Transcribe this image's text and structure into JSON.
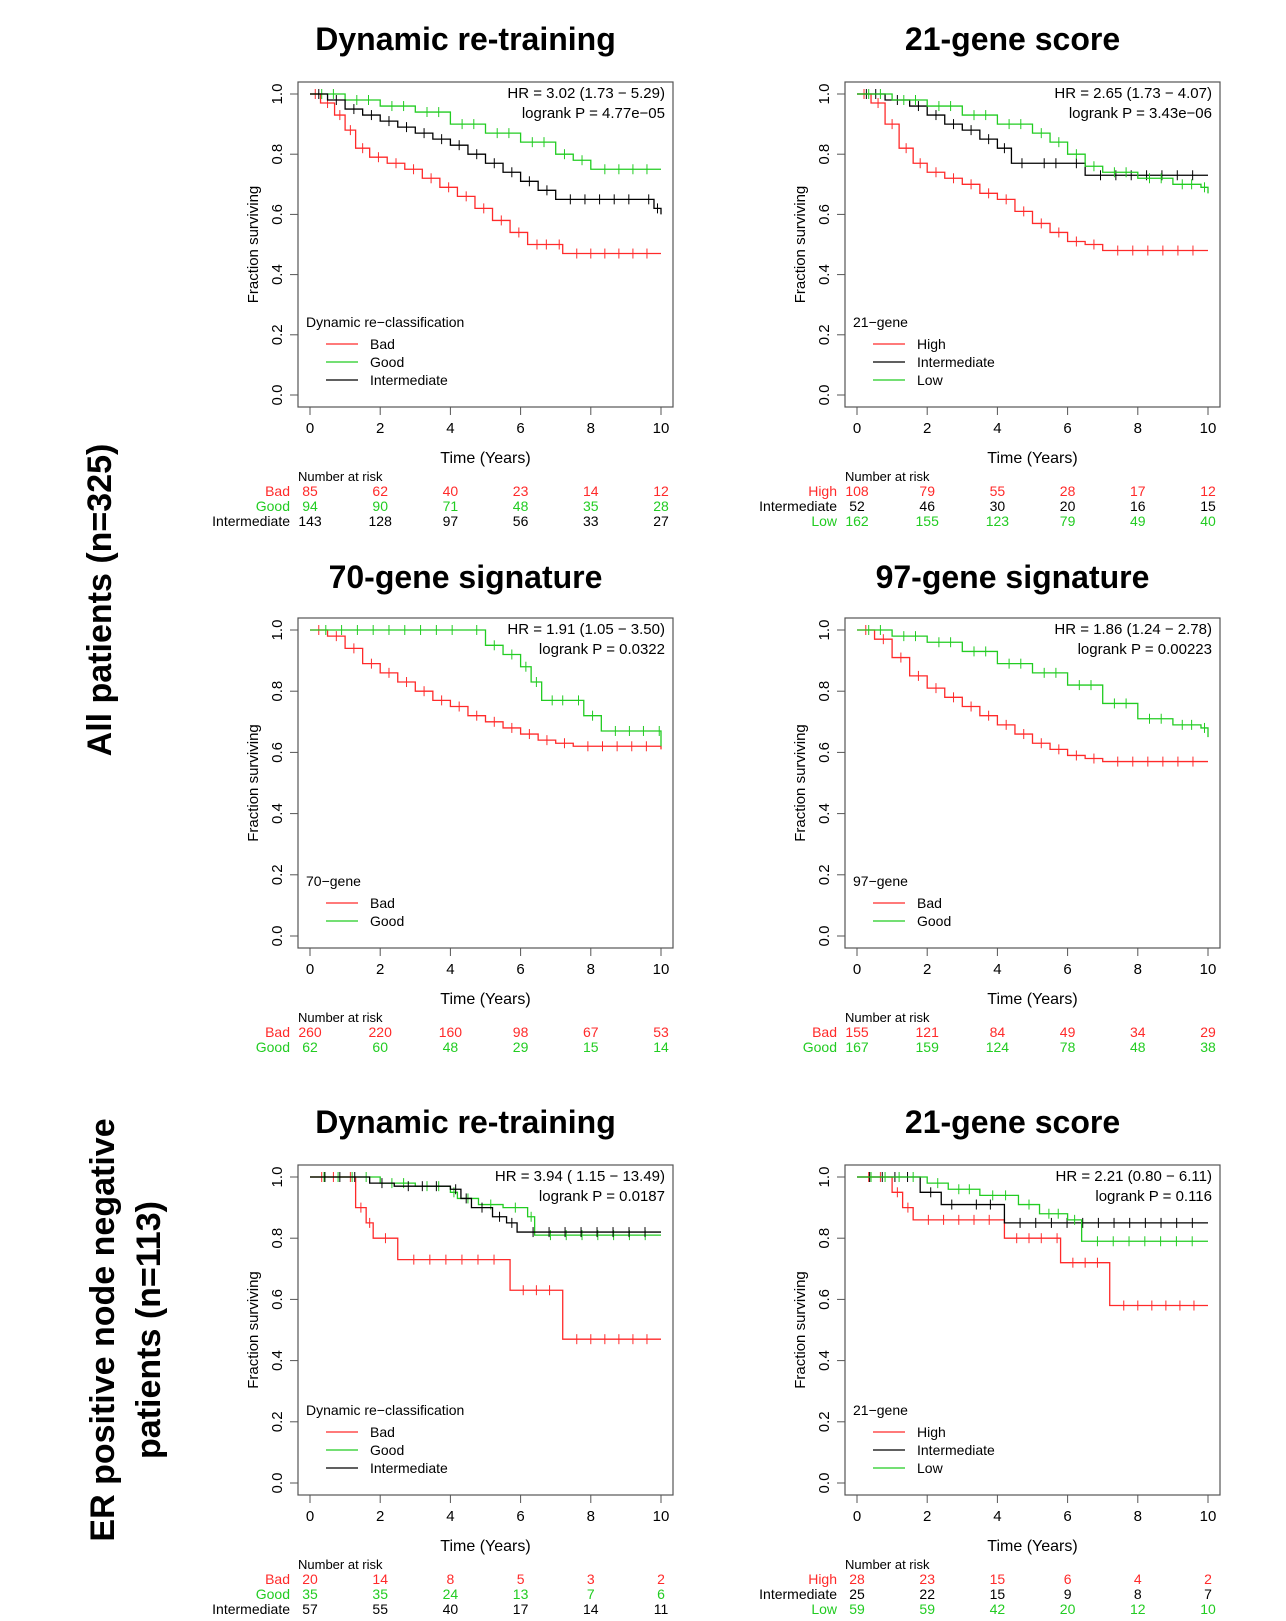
{
  "row_groups": [
    {
      "line1": "All patients (n=325)",
      "line2": ""
    },
    {
      "line1": "ER positive node negative",
      "line2": "patients (n=113)"
    }
  ],
  "chart_data": [
    {
      "type": "line",
      "title": "Dynamic re-training",
      "xlabel": "Time (Years)",
      "ylabel": "Fraction surviving",
      "xlim": [
        0,
        10
      ],
      "ylim": [
        0,
        1
      ],
      "xticks": [
        0,
        2,
        4,
        6,
        8,
        10
      ],
      "yticks": [
        "0.0",
        "0.2",
        "0.4",
        "0.6",
        "0.8",
        "1.0"
      ],
      "annotation": [
        "HR = 3.02 (1.73 − 5.29)",
        "logrank P = 4.77e−05"
      ],
      "legend": {
        "title": "Dynamic re−classification",
        "position": "bottom-left"
      },
      "risk_title": "Number at risk",
      "series": [
        {
          "name": "Bad",
          "color": "#ff2a2a",
          "x": [
            0,
            0.3,
            0.7,
            1.0,
            1.3,
            1.7,
            2.2,
            2.7,
            3.2,
            3.7,
            4.2,
            4.7,
            5.2,
            5.7,
            6.2,
            7.0,
            7.2,
            10
          ],
          "y": [
            1,
            0.97,
            0.93,
            0.88,
            0.82,
            0.79,
            0.77,
            0.75,
            0.72,
            0.69,
            0.66,
            0.62,
            0.58,
            0.54,
            0.5,
            0.5,
            0.47,
            0.47
          ],
          "risk": [
            85,
            62,
            40,
            23,
            14,
            12
          ]
        },
        {
          "name": "Good",
          "color": "#22cc22",
          "x": [
            0,
            1.0,
            2.0,
            3.0,
            4.0,
            5.0,
            6.0,
            7.0,
            7.5,
            8.0,
            10
          ],
          "y": [
            1,
            0.98,
            0.96,
            0.94,
            0.9,
            0.87,
            0.84,
            0.8,
            0.78,
            0.75,
            0.75
          ],
          "risk": [
            94,
            90,
            71,
            48,
            35,
            28
          ]
        },
        {
          "name": "Intermediate",
          "color": "#000000",
          "x": [
            0,
            0.5,
            1.0,
            1.5,
            2.0,
            2.5,
            3.0,
            3.5,
            4.0,
            4.5,
            5.0,
            5.5,
            6.0,
            6.5,
            7.0,
            9.5,
            9.8,
            10
          ],
          "y": [
            1,
            0.98,
            0.95,
            0.93,
            0.91,
            0.89,
            0.87,
            0.85,
            0.83,
            0.8,
            0.77,
            0.74,
            0.71,
            0.68,
            0.65,
            0.65,
            0.62,
            0.6
          ],
          "risk": [
            143,
            128,
            97,
            56,
            33,
            27
          ]
        }
      ]
    },
    {
      "type": "line",
      "title": "21-gene score",
      "xlabel": "Time (Years)",
      "ylabel": "Fraction surviving",
      "xlim": [
        0,
        10
      ],
      "ylim": [
        0,
        1
      ],
      "xticks": [
        0,
        2,
        4,
        6,
        8,
        10
      ],
      "yticks": [
        "0.0",
        "0.2",
        "0.4",
        "0.6",
        "0.8",
        "1.0"
      ],
      "annotation": [
        "HR = 2.65 (1.73 − 4.07)",
        "logrank P = 3.43e−06"
      ],
      "legend": {
        "title": "21−gene",
        "position": "bottom-left"
      },
      "risk_title": "Number at risk",
      "series": [
        {
          "name": "High",
          "color": "#ff2a2a",
          "x": [
            0,
            0.4,
            0.8,
            1.2,
            1.6,
            2.0,
            2.5,
            3.0,
            3.5,
            4.0,
            4.5,
            5.0,
            5.5,
            6.0,
            6.5,
            7.0,
            10
          ],
          "y": [
            1,
            0.97,
            0.9,
            0.82,
            0.77,
            0.74,
            0.72,
            0.7,
            0.67,
            0.65,
            0.61,
            0.57,
            0.54,
            0.51,
            0.5,
            0.48,
            0.48
          ],
          "risk": [
            108,
            79,
            55,
            28,
            17,
            12
          ]
        },
        {
          "name": "Intermediate",
          "color": "#000000",
          "x": [
            0,
            0.8,
            1.5,
            2.0,
            2.5,
            3.0,
            3.5,
            4.0,
            4.4,
            5.0,
            6.0,
            6.5,
            10
          ],
          "y": [
            1,
            0.98,
            0.96,
            0.93,
            0.9,
            0.88,
            0.85,
            0.82,
            0.77,
            0.77,
            0.77,
            0.73,
            0.73
          ],
          "risk": [
            52,
            46,
            30,
            20,
            16,
            15
          ]
        },
        {
          "name": "Low",
          "color": "#22cc22",
          "x": [
            0,
            1.0,
            2.0,
            3.0,
            4.0,
            5.0,
            5.5,
            6.0,
            6.5,
            7.0,
            8.0,
            9.0,
            9.8,
            10
          ],
          "y": [
            1,
            0.98,
            0.96,
            0.93,
            0.9,
            0.87,
            0.84,
            0.8,
            0.76,
            0.74,
            0.72,
            0.7,
            0.69,
            0.67
          ],
          "risk": [
            162,
            155,
            123,
            79,
            49,
            40
          ]
        }
      ]
    },
    {
      "type": "line",
      "title": "70-gene signature",
      "xlabel": "Time (Years)",
      "ylabel": "Fraction surviving",
      "xlim": [
        0,
        10
      ],
      "ylim": [
        0,
        1
      ],
      "xticks": [
        0,
        2,
        4,
        6,
        8,
        10
      ],
      "yticks": [
        "0.0",
        "0.2",
        "0.4",
        "0.6",
        "0.8",
        "1.0"
      ],
      "annotation": [
        "HR = 1.91 (1.05 − 3.50)",
        "logrank P = 0.0322"
      ],
      "legend": {
        "title": "70−gene",
        "position": "bottom-left"
      },
      "risk_title": "Number at risk",
      "series": [
        {
          "name": "Bad",
          "color": "#ff2a2a",
          "x": [
            0,
            0.5,
            1.0,
            1.5,
            2.0,
            2.5,
            3.0,
            3.5,
            4.0,
            4.5,
            5.0,
            5.5,
            6.0,
            6.5,
            7.0,
            7.5,
            10
          ],
          "y": [
            1,
            0.98,
            0.94,
            0.89,
            0.86,
            0.83,
            0.8,
            0.77,
            0.75,
            0.72,
            0.7,
            0.68,
            0.66,
            0.64,
            0.63,
            0.62,
            0.61
          ],
          "risk": [
            260,
            220,
            160,
            98,
            67,
            53
          ]
        },
        {
          "name": "Good",
          "color": "#22cc22",
          "x": [
            0,
            4.5,
            5.0,
            5.5,
            6.0,
            6.3,
            6.6,
            7.5,
            7.8,
            8.3,
            9.9,
            10
          ],
          "y": [
            1,
            1.0,
            0.95,
            0.92,
            0.88,
            0.83,
            0.77,
            0.77,
            0.72,
            0.67,
            0.67,
            0.62
          ],
          "risk": [
            62,
            60,
            48,
            29,
            15,
            14
          ]
        }
      ]
    },
    {
      "type": "line",
      "title": "97-gene signature",
      "xlabel": "Time (Years)",
      "ylabel": "Fraction surviving",
      "xlim": [
        0,
        10
      ],
      "ylim": [
        0,
        1
      ],
      "xticks": [
        0,
        2,
        4,
        6,
        8,
        10
      ],
      "yticks": [
        "0.0",
        "0.2",
        "0.4",
        "0.6",
        "0.8",
        "1.0"
      ],
      "annotation": [
        "HR = 1.86 (1.24 − 2.78)",
        "logrank P = 0.00223"
      ],
      "legend": {
        "title": "97−gene",
        "position": "bottom-left"
      },
      "risk_title": "Number at risk",
      "series": [
        {
          "name": "Bad",
          "color": "#ff2a2a",
          "x": [
            0,
            0.5,
            1.0,
            1.5,
            2.0,
            2.5,
            3.0,
            3.5,
            4.0,
            4.5,
            5.0,
            5.5,
            6.0,
            6.5,
            7.0,
            10
          ],
          "y": [
            1,
            0.97,
            0.91,
            0.85,
            0.81,
            0.78,
            0.75,
            0.72,
            0.69,
            0.66,
            0.63,
            0.61,
            0.59,
            0.58,
            0.57,
            0.57
          ],
          "risk": [
            155,
            121,
            84,
            49,
            34,
            29
          ]
        },
        {
          "name": "Good",
          "color": "#22cc22",
          "x": [
            0,
            1.0,
            2.0,
            3.0,
            4.0,
            5.0,
            6.0,
            7.0,
            8.0,
            9.0,
            9.8,
            10
          ],
          "y": [
            1,
            0.98,
            0.96,
            0.93,
            0.89,
            0.86,
            0.82,
            0.76,
            0.71,
            0.69,
            0.68,
            0.65
          ],
          "risk": [
            167,
            159,
            124,
            78,
            48,
            38
          ]
        }
      ]
    },
    {
      "type": "line",
      "title": "Dynamic re-training",
      "xlabel": "Time (Years)",
      "ylabel": "Fraction surviving",
      "xlim": [
        0,
        10
      ],
      "ylim": [
        0,
        1
      ],
      "xticks": [
        0,
        2,
        4,
        6,
        8,
        10
      ],
      "yticks": [
        "0.0",
        "0.2",
        "0.4",
        "0.6",
        "0.8",
        "1.0"
      ],
      "annotation": [
        "HR =  3.94 ( 1.15 − 13.49)",
        "logrank P = 0.0187"
      ],
      "legend": {
        "title": "Dynamic re−classification",
        "position": "bottom-left"
      },
      "risk_title": "Number at risk",
      "series": [
        {
          "name": "Bad",
          "color": "#ff2a2a",
          "x": [
            0,
            1.0,
            1.3,
            1.6,
            1.8,
            2.5,
            5.7,
            7.2,
            10
          ],
          "y": [
            1,
            1.0,
            0.9,
            0.85,
            0.8,
            0.73,
            0.63,
            0.47,
            0.47
          ],
          "risk": [
            20,
            14,
            8,
            5,
            3,
            2
          ]
        },
        {
          "name": "Good",
          "color": "#22cc22",
          "x": [
            0,
            2.0,
            3.0,
            4.0,
            4.2,
            4.8,
            5.5,
            6.2,
            6.4,
            10
          ],
          "y": [
            1,
            0.98,
            0.97,
            0.95,
            0.93,
            0.91,
            0.9,
            0.87,
            0.81,
            0.81
          ],
          "risk": [
            35,
            35,
            24,
            13,
            7,
            6
          ]
        },
        {
          "name": "Intermediate",
          "color": "#000000",
          "x": [
            0,
            1.7,
            2.4,
            4.0,
            4.3,
            4.6,
            5.2,
            5.6,
            5.9,
            10
          ],
          "y": [
            1,
            0.98,
            0.97,
            0.96,
            0.93,
            0.9,
            0.87,
            0.85,
            0.82,
            0.82
          ],
          "risk": [
            57,
            55,
            40,
            17,
            14,
            11
          ]
        }
      ]
    },
    {
      "type": "line",
      "title": "21-gene score",
      "xlabel": "Time (Years)",
      "ylabel": "Fraction surviving",
      "xlim": [
        0,
        10
      ],
      "ylim": [
        0,
        1
      ],
      "xticks": [
        0,
        2,
        4,
        6,
        8,
        10
      ],
      "yticks": [
        "0.0",
        "0.2",
        "0.4",
        "0.6",
        "0.8",
        "1.0"
      ],
      "annotation": [
        "HR = 2.21 (0.80 − 6.11)",
        "logrank P = 0.116"
      ],
      "legend": {
        "title": "21−gene",
        "position": "bottom-left"
      },
      "risk_title": "Number at risk",
      "series": [
        {
          "name": "High",
          "color": "#ff2a2a",
          "x": [
            0,
            1.0,
            1.3,
            1.6,
            4.2,
            5.6,
            5.8,
            7.2,
            10
          ],
          "y": [
            1,
            0.95,
            0.9,
            0.86,
            0.8,
            0.8,
            0.72,
            0.58,
            0.58
          ],
          "risk": [
            28,
            23,
            15,
            6,
            4,
            2
          ]
        },
        {
          "name": "Intermediate",
          "color": "#000000",
          "x": [
            0,
            1.8,
            2.4,
            3.0,
            4.2,
            10
          ],
          "y": [
            1,
            0.95,
            0.91,
            0.91,
            0.85,
            0.85
          ],
          "risk": [
            25,
            22,
            15,
            9,
            8,
            7
          ]
        },
        {
          "name": "Low",
          "color": "#22cc22",
          "x": [
            0,
            2.0,
            2.6,
            3.5,
            4.6,
            5.2,
            6.0,
            6.4,
            10
          ],
          "y": [
            1,
            0.98,
            0.96,
            0.94,
            0.91,
            0.88,
            0.86,
            0.79,
            0.79
          ],
          "risk": [
            59,
            59,
            42,
            20,
            12,
            10
          ]
        }
      ]
    }
  ]
}
